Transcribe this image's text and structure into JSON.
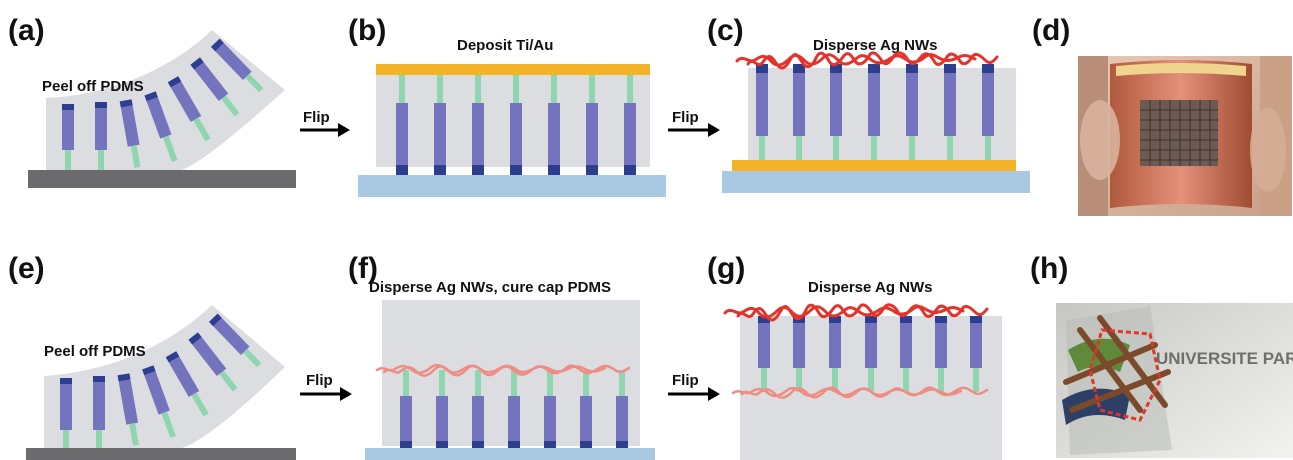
{
  "panels": {
    "a": {
      "label": "(a)",
      "caption": "Peel off PDMS"
    },
    "b": {
      "label": "(b)",
      "caption": "Deposit Ti/Au"
    },
    "c": {
      "label": "(c)",
      "caption": "Disperse Ag NWs"
    },
    "d": {
      "label": "(d)"
    },
    "e": {
      "label": "(e)",
      "caption": "Peel off PDMS"
    },
    "f": {
      "label": "(f)",
      "caption": "Disperse Ag NWs, cure cap PDMS"
    },
    "g": {
      "label": "(g)",
      "caption": "Disperse Ag NWs"
    },
    "h": {
      "label": "(h)"
    }
  },
  "arrows": {
    "flip": "Flip"
  },
  "photo_h": {
    "text": "UNIVERSITE PARIS SUD"
  },
  "colors": {
    "pdms": "#dcdde0",
    "pillar": "#7474be",
    "pillar_cap": "#2e3e8e",
    "stem": "#8fd6b0",
    "substrate_dark": "#6b6b6e",
    "substrate_light": "#a9c9e3",
    "gold": "#f3b428",
    "agnw": "#e3332b",
    "agnw_faint": "#ef8c84"
  }
}
